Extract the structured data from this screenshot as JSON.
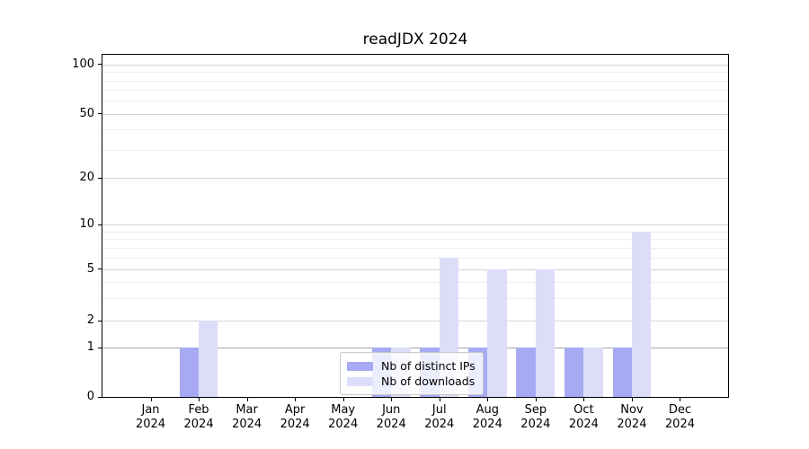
{
  "chart_data": {
    "type": "bar",
    "title": "readJDX 2024",
    "categories": [
      "Jan",
      "Feb",
      "Mar",
      "Apr",
      "May",
      "Jun",
      "Jul",
      "Aug",
      "Sep",
      "Oct",
      "Nov",
      "Dec"
    ],
    "year_label": "2024",
    "series": [
      {
        "name": "Nb of distinct IPs",
        "color": "#a7aaf2",
        "values": [
          0,
          1,
          0,
          0,
          0,
          1,
          1,
          1,
          1,
          1,
          1,
          0
        ]
      },
      {
        "name": "Nb of downloads",
        "color": "#dcdef9",
        "values": [
          0,
          2,
          0,
          0,
          0,
          1,
          6,
          5,
          5,
          1,
          9,
          0
        ]
      }
    ],
    "y_axis": {
      "ticks": [
        0,
        1,
        2,
        5,
        10,
        20,
        50,
        100
      ],
      "minor_ticks": [
        3,
        4,
        6,
        7,
        8,
        9,
        30,
        40,
        60,
        70,
        80,
        90
      ],
      "scale": "log (0 pinned to baseline)",
      "scale_anchors": [
        [
          0,
          1.0
        ],
        [
          1,
          0.8564
        ],
        [
          2,
          0.7781
        ],
        [
          5,
          0.6266
        ],
        [
          10,
          0.4961
        ],
        [
          20,
          0.3603
        ],
        [
          50,
          0.1723
        ],
        [
          100,
          0.0287
        ]
      ]
    },
    "xlabel": "",
    "ylabel": "",
    "legend": {
      "position": "lower center, inside plot area"
    },
    "grid": "horizontal major and minor gridlines",
    "colors": {
      "grid_major": "#d4d4d4",
      "grid_minor": "#eeeeee",
      "grid_level_one": "#a8a8a8",
      "axis": "#000000",
      "legend_border": "#c9c9c9"
    }
  }
}
